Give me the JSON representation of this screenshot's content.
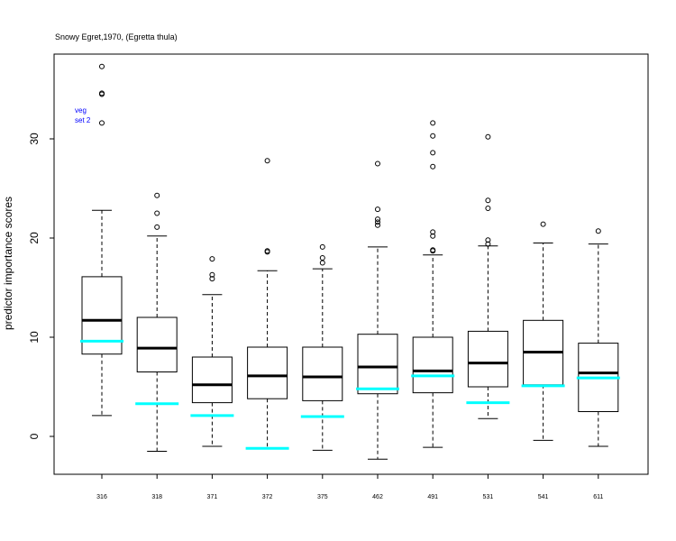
{
  "chart_data": {
    "type": "boxplot",
    "title": "Snowy Egret,1970, (Egretta thula)",
    "xlabel": "",
    "ylabel": "predictor importance scores",
    "ylim": [
      -4,
      39
    ],
    "yticks": [
      0,
      10,
      20,
      30
    ],
    "grid": false,
    "legend_lines": [
      "veg",
      "set 2"
    ],
    "legend_placement": "top-left",
    "colors": {
      "box": "#000000",
      "median": "#000000",
      "reference": "#00ffff",
      "legend_text": "#0000ff"
    },
    "categories": [
      "316",
      "318",
      "371",
      "372",
      "375",
      "462",
      "491",
      "531",
      "541",
      "611"
    ],
    "boxes": [
      {
        "label": "316",
        "whisker_low": 2.1,
        "q1": 8.3,
        "median": 11.7,
        "q3": 16.1,
        "whisker_high": 22.8,
        "outliers": [
          37.3,
          34.6,
          34.5,
          31.6
        ],
        "reference": 9.6
      },
      {
        "label": "318",
        "whisker_low": -1.5,
        "q1": 6.5,
        "median": 8.9,
        "q3": 12.0,
        "whisker_high": 20.2,
        "outliers": [
          24.3,
          22.5,
          21.1
        ],
        "reference": 3.3
      },
      {
        "label": "371",
        "whisker_low": -1.0,
        "q1": 3.4,
        "median": 5.2,
        "q3": 8.0,
        "whisker_high": 14.3,
        "outliers": [
          17.9,
          16.3,
          15.9
        ],
        "reference": 2.1
      },
      {
        "label": "372",
        "whisker_low": -1.2,
        "q1": 3.8,
        "median": 6.1,
        "q3": 9.0,
        "whisker_high": 16.7,
        "outliers": [
          27.8,
          18.7,
          18.6
        ],
        "reference": -1.2
      },
      {
        "label": "375",
        "whisker_low": -1.4,
        "q1": 3.6,
        "median": 6.0,
        "q3": 9.0,
        "whisker_high": 16.9,
        "outliers": [
          19.1,
          18.0,
          17.5
        ],
        "reference": 2.0
      },
      {
        "label": "462",
        "whisker_low": -2.3,
        "q1": 4.3,
        "median": 7.0,
        "q3": 10.3,
        "whisker_high": 19.1,
        "outliers": [
          27.5,
          22.9,
          21.9,
          21.6,
          21.3
        ],
        "reference": 4.8
      },
      {
        "label": "491",
        "whisker_low": -1.1,
        "q1": 4.4,
        "median": 6.6,
        "q3": 10.0,
        "whisker_high": 18.3,
        "outliers": [
          31.6,
          30.3,
          28.6,
          27.2,
          20.6,
          20.2,
          18.8,
          18.7
        ],
        "reference": 6.1
      },
      {
        "label": "531",
        "whisker_low": 1.8,
        "q1": 5.0,
        "median": 7.4,
        "q3": 10.6,
        "whisker_high": 19.2,
        "outliers": [
          30.2,
          23.8,
          23.0,
          19.8,
          19.4
        ],
        "reference": 3.4
      },
      {
        "label": "541",
        "whisker_low": -0.4,
        "q1": 5.2,
        "median": 8.5,
        "q3": 11.7,
        "whisker_high": 19.5,
        "outliers": [
          21.4
        ],
        "reference": 5.1
      },
      {
        "label": "611",
        "whisker_low": -1.0,
        "q1": 2.5,
        "median": 6.4,
        "q3": 9.4,
        "whisker_high": 19.4,
        "outliers": [
          20.7
        ],
        "reference": 5.9
      }
    ]
  }
}
